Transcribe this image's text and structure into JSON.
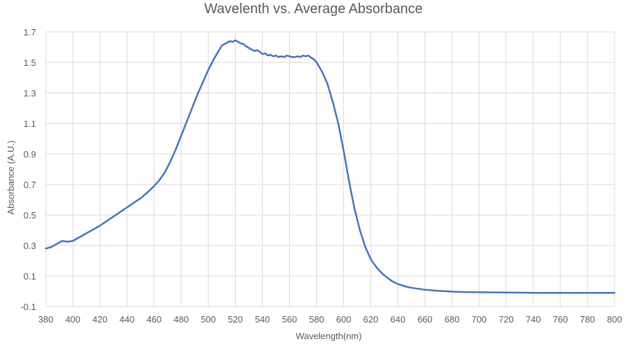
{
  "chart_data": {
    "type": "line",
    "title": "Wavelenth vs. Average Absorbance",
    "xlabel": "Wavelength(nm)",
    "ylabel": "Absorbance (A.U.)",
    "xlim": [
      380,
      800
    ],
    "ylim": [
      -0.1,
      1.7
    ],
    "x_ticks": [
      380,
      400,
      420,
      440,
      460,
      480,
      500,
      520,
      540,
      560,
      580,
      600,
      620,
      640,
      660,
      680,
      700,
      720,
      740,
      760,
      780,
      800
    ],
    "y_ticks": [
      -0.1,
      0.1,
      0.3,
      0.5,
      0.7,
      0.9,
      1.1,
      1.3,
      1.5,
      1.7
    ],
    "x_tick_labels": [
      "380",
      "400",
      "420",
      "440",
      "460",
      "480",
      "500",
      "520",
      "540",
      "560",
      "580",
      "600",
      "620",
      "640",
      "660",
      "680",
      "700",
      "720",
      "740",
      "760",
      "780",
      "800"
    ],
    "y_tick_labels": [
      "-0.1",
      "0.1",
      "0.3",
      "0.5",
      "0.7",
      "0.9",
      "1.1",
      "1.3",
      "1.5",
      "1.7"
    ],
    "grid": true,
    "legend": "none",
    "series": [
      {
        "color": "#4472C4",
        "x": [
          380,
          384,
          388,
          392,
          396,
          400,
          404,
          408,
          412,
          416,
          420,
          430,
          440,
          450,
          456,
          460,
          464,
          468,
          472,
          476,
          480,
          484,
          488,
          492,
          496,
          500,
          504,
          508,
          510,
          514,
          516,
          518,
          520,
          522,
          524,
          526,
          528,
          530,
          532,
          534,
          536,
          538,
          540,
          542,
          544,
          546,
          548,
          550,
          552,
          554,
          556,
          558,
          560,
          562,
          564,
          566,
          568,
          570,
          572,
          574,
          576,
          578,
          580,
          584,
          588,
          592,
          596,
          600,
          604,
          608,
          612,
          616,
          620,
          624,
          628,
          632,
          636,
          640,
          645,
          650,
          660,
          670,
          680,
          690,
          700,
          720,
          740,
          760,
          780,
          800
        ],
        "y": [
          0.28,
          0.29,
          0.31,
          0.33,
          0.325,
          0.33,
          0.35,
          0.37,
          0.39,
          0.41,
          0.43,
          0.49,
          0.55,
          0.61,
          0.655,
          0.69,
          0.73,
          0.78,
          0.85,
          0.93,
          1.02,
          1.11,
          1.2,
          1.29,
          1.37,
          1.45,
          1.52,
          1.58,
          1.61,
          1.63,
          1.64,
          1.635,
          1.645,
          1.635,
          1.625,
          1.62,
          1.605,
          1.595,
          1.585,
          1.575,
          1.58,
          1.57,
          1.555,
          1.56,
          1.545,
          1.55,
          1.54,
          1.545,
          1.535,
          1.54,
          1.535,
          1.545,
          1.54,
          1.535,
          1.535,
          1.54,
          1.535,
          1.545,
          1.54,
          1.545,
          1.53,
          1.52,
          1.5,
          1.44,
          1.36,
          1.24,
          1.1,
          0.92,
          0.72,
          0.54,
          0.4,
          0.29,
          0.21,
          0.16,
          0.12,
          0.09,
          0.065,
          0.048,
          0.033,
          0.023,
          0.01,
          0.003,
          -0.002,
          -0.005,
          -0.006,
          -0.008,
          -0.01,
          -0.01,
          -0.01,
          -0.01
        ]
      }
    ]
  }
}
